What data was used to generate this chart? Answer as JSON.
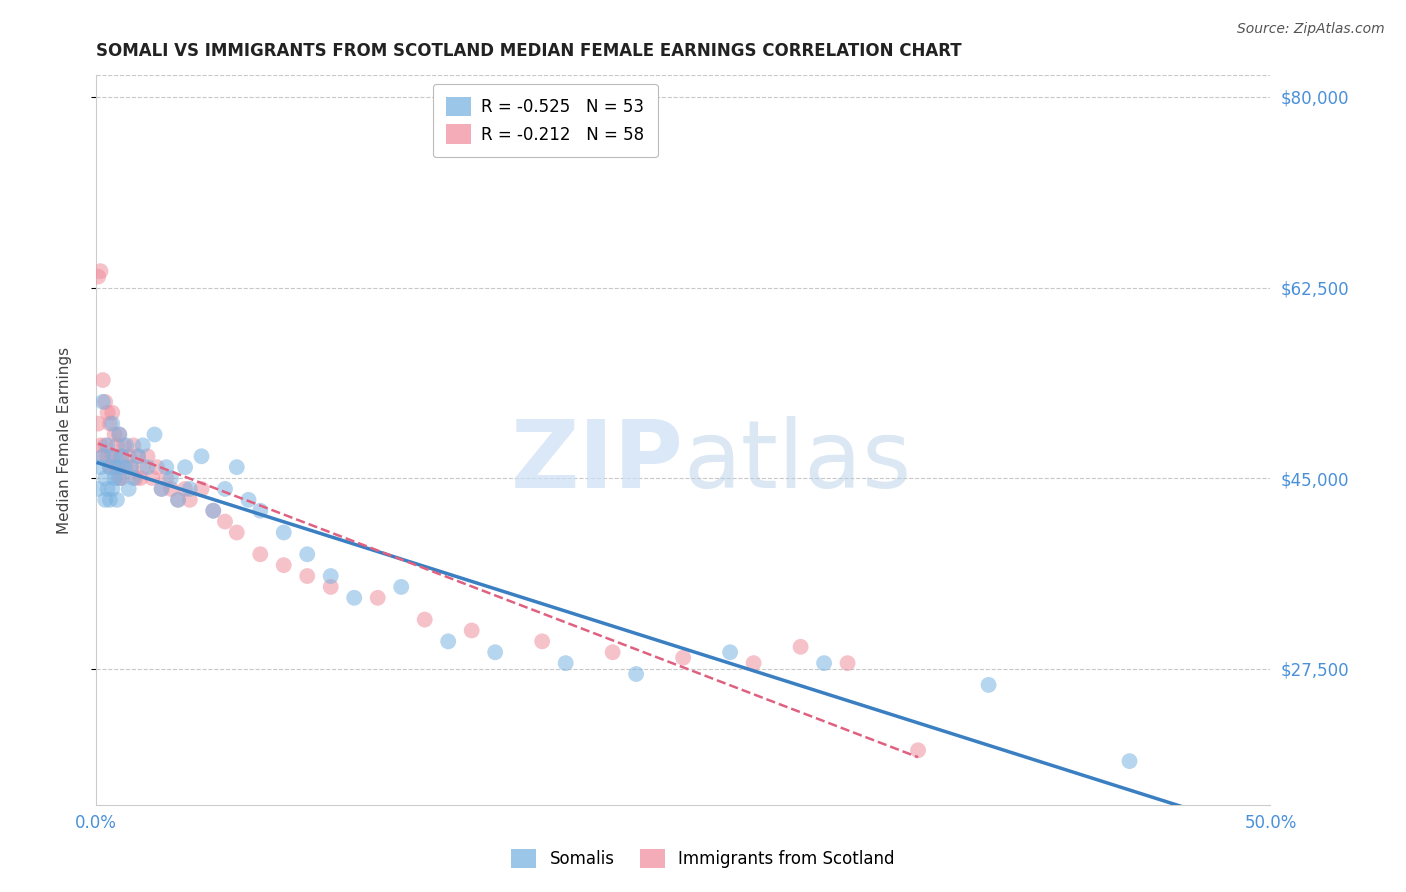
{
  "title": "SOMALI VS IMMIGRANTS FROM SCOTLAND MEDIAN FEMALE EARNINGS CORRELATION CHART",
  "source": "Source: ZipAtlas.com",
  "ylabel": "Median Female Earnings",
  "xlim": [
    0.0,
    0.5
  ],
  "ylim": [
    15000,
    82000
  ],
  "yticks": [
    27500,
    45000,
    62500,
    80000
  ],
  "ytick_labels": [
    "$27,500",
    "$45,000",
    "$62,500",
    "$80,000"
  ],
  "xticks": [
    0.0,
    0.1,
    0.2,
    0.3,
    0.4,
    0.5
  ],
  "xtick_labels": [
    "0.0%",
    "",
    "",
    "",
    "",
    "50.0%"
  ],
  "grid_color": "#c8c8c8",
  "background_color": "#ffffff",
  "somali_color": "#7bb3e0",
  "scotland_color": "#f090a0",
  "somali_R": -0.525,
  "somali_N": 53,
  "scotland_R": -0.212,
  "scotland_N": 58,
  "somali_label": "Somalis",
  "scotland_label": "Immigrants from Scotland",
  "axis_color": "#4a90d9",
  "somali_line_color": "#3a7fc1",
  "scotland_line_color": "#e06080",
  "somali_x": [
    0.001,
    0.002,
    0.003,
    0.003,
    0.004,
    0.004,
    0.005,
    0.005,
    0.006,
    0.006,
    0.007,
    0.007,
    0.008,
    0.008,
    0.009,
    0.009,
    0.01,
    0.01,
    0.011,
    0.012,
    0.013,
    0.014,
    0.015,
    0.016,
    0.018,
    0.02,
    0.022,
    0.025,
    0.028,
    0.03,
    0.032,
    0.035,
    0.038,
    0.04,
    0.045,
    0.05,
    0.055,
    0.06,
    0.065,
    0.07,
    0.08,
    0.09,
    0.1,
    0.11,
    0.13,
    0.15,
    0.17,
    0.2,
    0.23,
    0.27,
    0.31,
    0.38,
    0.44
  ],
  "somali_y": [
    44000,
    46000,
    47000,
    52000,
    45000,
    43000,
    48000,
    44000,
    46000,
    43000,
    50000,
    44000,
    47000,
    45000,
    46000,
    43000,
    49000,
    45000,
    47000,
    46000,
    48000,
    44000,
    46000,
    45000,
    47000,
    48000,
    46000,
    49000,
    44000,
    46000,
    45000,
    43000,
    46000,
    44000,
    47000,
    42000,
    44000,
    46000,
    43000,
    42000,
    40000,
    38000,
    36000,
    34000,
    35000,
    30000,
    29000,
    28000,
    27000,
    29000,
    28000,
    26000,
    19000
  ],
  "scotland_x": [
    0.001,
    0.001,
    0.002,
    0.002,
    0.003,
    0.003,
    0.004,
    0.004,
    0.005,
    0.005,
    0.006,
    0.006,
    0.007,
    0.007,
    0.008,
    0.008,
    0.009,
    0.009,
    0.01,
    0.01,
    0.011,
    0.011,
    0.012,
    0.013,
    0.014,
    0.015,
    0.016,
    0.017,
    0.018,
    0.019,
    0.02,
    0.022,
    0.024,
    0.026,
    0.028,
    0.03,
    0.032,
    0.035,
    0.038,
    0.04,
    0.045,
    0.05,
    0.055,
    0.06,
    0.07,
    0.08,
    0.09,
    0.1,
    0.12,
    0.14,
    0.16,
    0.19,
    0.22,
    0.25,
    0.28,
    0.3,
    0.32,
    0.35
  ],
  "scotland_y": [
    63500,
    50000,
    64000,
    48000,
    54000,
    47000,
    52000,
    48000,
    51000,
    47000,
    50000,
    46000,
    51000,
    47000,
    49000,
    46000,
    48000,
    46000,
    49000,
    45000,
    47000,
    45000,
    48000,
    46000,
    47000,
    46000,
    48000,
    45000,
    47000,
    45000,
    46000,
    47000,
    45000,
    46000,
    44000,
    45000,
    44000,
    43000,
    44000,
    43000,
    44000,
    42000,
    41000,
    40000,
    38000,
    37000,
    36000,
    35000,
    34000,
    32000,
    31000,
    30000,
    29000,
    28500,
    28000,
    29500,
    28000,
    20000
  ]
}
